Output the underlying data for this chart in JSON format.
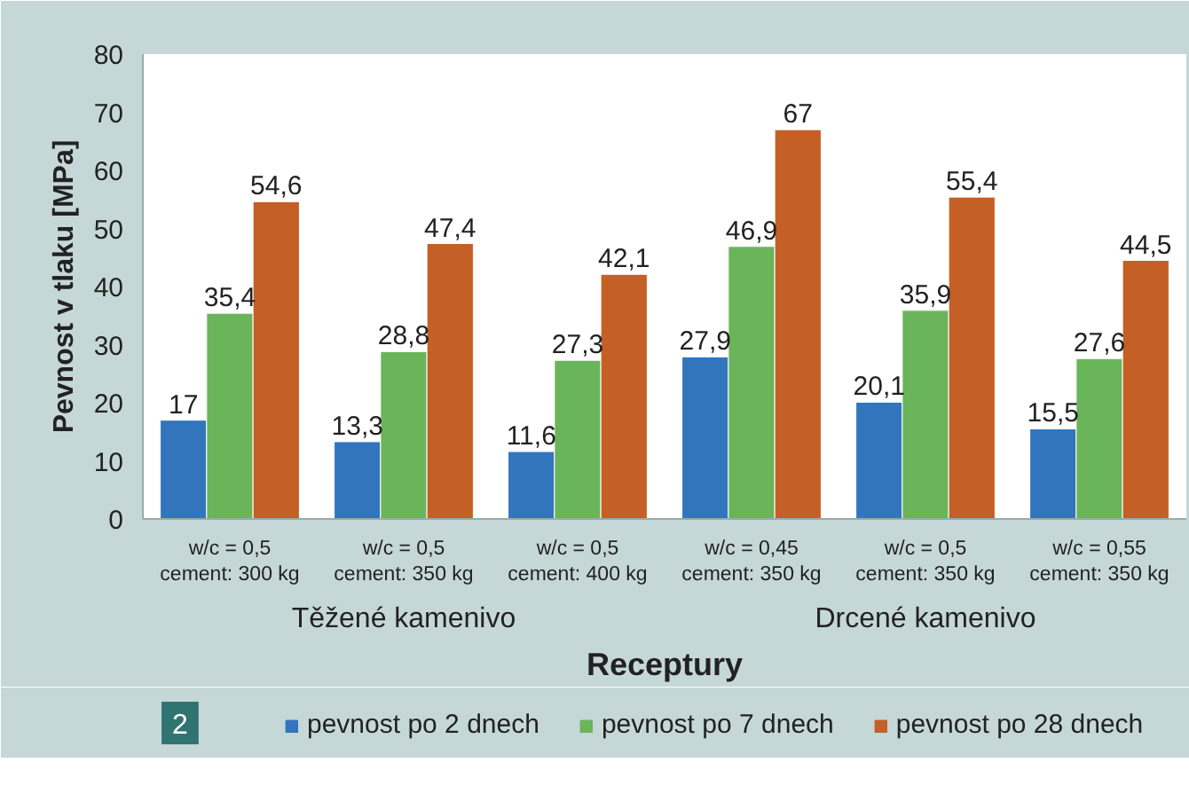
{
  "chart_data": {
    "type": "bar",
    "categories": [
      "w/c = 0,5\ncement: 300 kg",
      "w/c = 0,5\ncement: 350 kg",
      "w/c = 0,5\ncement: 400 kg",
      "w/c = 0,45\ncement: 350 kg",
      "w/c = 0,5\ncement: 350 kg",
      "w/c = 0,55\ncement: 350 kg"
    ],
    "series": [
      {
        "name": "pevnost po 2 dnech",
        "color": "#3275bd",
        "values": [
          17,
          13.3,
          11.6,
          27.9,
          20.1,
          15.5
        ],
        "value_labels": [
          "17",
          "13,3",
          "11,6",
          "27,9",
          "20,1",
          "15,5"
        ]
      },
      {
        "name": "pevnost po 7 dnech",
        "color": "#6ab459",
        "values": [
          35.4,
          28.8,
          27.3,
          46.9,
          35.9,
          27.6
        ],
        "value_labels": [
          "35,4",
          "28,8",
          "27,3",
          "46,9",
          "35,9",
          "27,6"
        ]
      },
      {
        "name": "pevnost po 28 dnech",
        "color": "#c45f26",
        "values": [
          54.6,
          47.4,
          42.1,
          67,
          55.4,
          44.5
        ],
        "value_labels": [
          "54,6",
          "47,4",
          "42,1",
          "67",
          "55,4",
          "44,5"
        ]
      }
    ],
    "xlabel": "Receptury",
    "ylabel": "Pevnost v tlaku [MPa]",
    "ylim": [
      0,
      80
    ],
    "yticks": [
      0,
      10,
      20,
      30,
      40,
      50,
      60,
      70,
      80
    ],
    "annotations": [
      "Těžené kamenivo",
      "Drcené kamenivo",
      "2"
    ],
    "grid": false,
    "legend": "bottom"
  }
}
